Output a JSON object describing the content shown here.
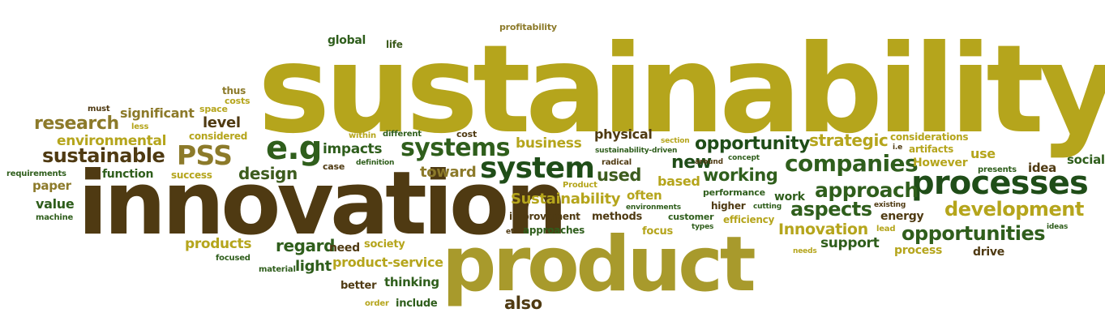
{
  "words": [
    {
      "text": "sustainability",
      "color": "#b5a51c"
    },
    {
      "text": "innovation",
      "color": "#4f3a12"
    },
    {
      "text": "product",
      "color": "#a89a2c"
    },
    {
      "text": "processes",
      "color": "#1f4d18"
    },
    {
      "text": "system",
      "color": "#1f4d18"
    },
    {
      "text": "systems",
      "color": "#2f5e1c"
    },
    {
      "text": "e.g",
      "color": "#2f5e1c"
    },
    {
      "text": "PSS",
      "color": "#8c7a2a"
    },
    {
      "text": "companies",
      "color": "#2f5e1c"
    },
    {
      "text": "approach",
      "color": "#2f5e1c"
    },
    {
      "text": "development",
      "color": "#b5a51c"
    },
    {
      "text": "opportunities",
      "color": "#2f5e1c"
    },
    {
      "text": "aspects",
      "color": "#2f5e1c"
    },
    {
      "text": "research",
      "color": "#8c7a2a"
    },
    {
      "text": "sustainable",
      "color": "#4f3a12"
    },
    {
      "text": "opportunity",
      "color": "#1f4d18"
    },
    {
      "text": "working",
      "color": "#2f5e1c"
    },
    {
      "text": "strategic",
      "color": "#b5a51c"
    },
    {
      "text": "Sustainability",
      "color": "#b5a51c"
    },
    {
      "text": "environmental",
      "color": "#b5a51c"
    },
    {
      "text": "also",
      "color": "#4f3a12"
    },
    {
      "text": "Innovation",
      "color": "#b5a51c"
    },
    {
      "text": "regard",
      "color": "#2f5e1c"
    },
    {
      "text": "new",
      "color": "#1f4d18"
    },
    {
      "text": "used",
      "color": "#3d5c1e"
    },
    {
      "text": "design",
      "color": "#3d5c1e"
    },
    {
      "text": "toward",
      "color": "#8c7a2a"
    },
    {
      "text": "business",
      "color": "#b5a51c"
    },
    {
      "text": "impacts",
      "color": "#2f5e1c"
    },
    {
      "text": "products",
      "color": "#b5a51c"
    },
    {
      "text": "light",
      "color": "#2f5e1c"
    },
    {
      "text": "product-service",
      "color": "#b5a51c"
    },
    {
      "text": "support",
      "color": "#2f5e1c"
    },
    {
      "text": "social",
      "color": "#2f5e1c"
    },
    {
      "text": "level",
      "color": "#4f3a12"
    },
    {
      "text": "significant",
      "color": "#8c7a2a"
    },
    {
      "text": "physical",
      "color": "#4f3a12"
    },
    {
      "text": "value",
      "color": "#2f5e1c"
    },
    {
      "text": "paper",
      "color": "#8c7a2a"
    },
    {
      "text": "function",
      "color": "#2f5e1c"
    },
    {
      "text": "based",
      "color": "#b5a51c"
    },
    {
      "text": "often",
      "color": "#b5a51c"
    },
    {
      "text": "work",
      "color": "#2f5e1c"
    },
    {
      "text": "energy",
      "color": "#4f3a12"
    },
    {
      "text": "idea",
      "color": "#4f3a12"
    },
    {
      "text": "use",
      "color": "#b5a51c"
    },
    {
      "text": "However",
      "color": "#b5a51c"
    },
    {
      "text": "artifacts",
      "color": "#b5a51c"
    },
    {
      "text": "considerations",
      "color": "#b5a51c"
    },
    {
      "text": "thinking",
      "color": "#2f5e1c"
    },
    {
      "text": "better",
      "color": "#4f3a12"
    },
    {
      "text": "include",
      "color": "#2f5e1c"
    },
    {
      "text": "need",
      "color": "#4f3a12"
    },
    {
      "text": "society",
      "color": "#b5a51c"
    },
    {
      "text": "process",
      "color": "#b5a51c"
    },
    {
      "text": "drive",
      "color": "#4f3a12"
    },
    {
      "text": "methods",
      "color": "#4f3a12"
    },
    {
      "text": "improvement",
      "color": "#4f3a12"
    },
    {
      "text": "approaches",
      "color": "#2f5e1c"
    },
    {
      "text": "focus",
      "color": "#b5a51c"
    },
    {
      "text": "customer",
      "color": "#2f5e1c"
    },
    {
      "text": "efficiency",
      "color": "#b5a51c"
    },
    {
      "text": "higher",
      "color": "#4f3a12"
    },
    {
      "text": "performance",
      "color": "#2f5e1c"
    },
    {
      "text": "global",
      "color": "#2f5e1c"
    },
    {
      "text": "life",
      "color": "#3d5c1e"
    },
    {
      "text": "profitability",
      "color": "#8c7a2a"
    },
    {
      "text": "thus",
      "color": "#8c7a2a"
    },
    {
      "text": "costs",
      "color": "#b5a51c"
    },
    {
      "text": "must",
      "color": "#4f3a12"
    },
    {
      "text": "space",
      "color": "#b5a51c"
    },
    {
      "text": "less",
      "color": "#b5a51c"
    },
    {
      "text": "considered",
      "color": "#b5a51c"
    },
    {
      "text": "within",
      "color": "#b5a51c"
    },
    {
      "text": "different",
      "color": "#2f5e1c"
    },
    {
      "text": "cost",
      "color": "#4f3a12"
    },
    {
      "text": "case",
      "color": "#4f3a12"
    },
    {
      "text": "definition",
      "color": "#2f5e1c"
    },
    {
      "text": "success",
      "color": "#b5a51c"
    },
    {
      "text": "requirements",
      "color": "#2f5e1c"
    },
    {
      "text": "machine",
      "color": "#2f5e1c"
    },
    {
      "text": "focused",
      "color": "#2f5e1c"
    },
    {
      "text": "material",
      "color": "#2f5e1c"
    },
    {
      "text": "order",
      "color": "#b5a51c"
    },
    {
      "text": "etc",
      "color": "#4f3a12"
    },
    {
      "text": "Product",
      "color": "#b5a51c"
    },
    {
      "text": "radical",
      "color": "#4f3a12"
    },
    {
      "text": "environments",
      "color": "#2f5e1c"
    },
    {
      "text": "sustainability-driven",
      "color": "#2f5e1c"
    },
    {
      "text": "section",
      "color": "#b5a51c"
    },
    {
      "text": "concept",
      "color": "#2f5e1c"
    },
    {
      "text": "around",
      "color": "#4f3a12"
    },
    {
      "text": "cutting",
      "color": "#2f5e1c"
    },
    {
      "text": "types",
      "color": "#2f5e1c"
    },
    {
      "text": "lead",
      "color": "#b5a51c"
    },
    {
      "text": "existing",
      "color": "#4f3a12"
    },
    {
      "text": "i.e",
      "color": "#4f3a12"
    },
    {
      "text": "presents",
      "color": "#2f5e1c"
    },
    {
      "text": "ideas",
      "color": "#2f5e1c"
    },
    {
      "text": "needs",
      "color": "#b5a51c"
    }
  ]
}
